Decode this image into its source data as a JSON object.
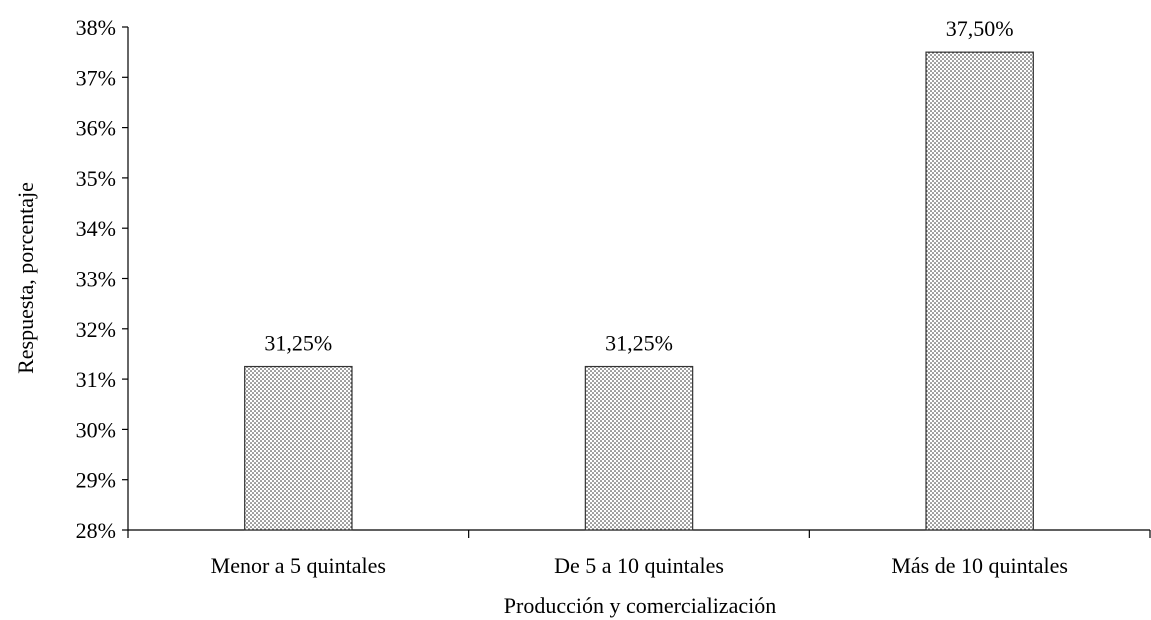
{
  "chart_data": {
    "type": "bar",
    "title": "",
    "categories": [
      "Menor a 5 quintales",
      "De 5 a 10 quintales",
      "Más de 10 quintales"
    ],
    "values": [
      31.25,
      31.25,
      37.5
    ],
    "data_labels": [
      "31,25%",
      "31,25%",
      "37,50%"
    ],
    "xlabel": "Producción y comercialización",
    "ylabel": "Respuesta, porcentaje",
    "ylim": [
      28,
      38
    ],
    "yticks": [
      28,
      29,
      30,
      31,
      32,
      33,
      34,
      35,
      36,
      37,
      38
    ],
    "ytick_labels": [
      "28%",
      "29%",
      "30%",
      "31%",
      "32%",
      "33%",
      "34%",
      "35%",
      "36%",
      "37%",
      "38%"
    ],
    "bar_fill": "dotted-pattern",
    "grid": false,
    "legend": false
  }
}
